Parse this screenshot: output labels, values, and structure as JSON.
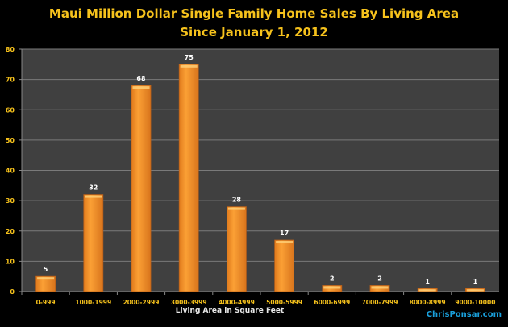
{
  "chart_data": {
    "type": "bar",
    "title": "Maui Million Dollar Single Family Home Sales By Living Area",
    "subtitle": "Since January 1, 2012",
    "xlabel": "Living Area in Square Feet",
    "ylabel": "",
    "categories": [
      "0-999",
      "1000-1999",
      "2000-2999",
      "3000-3999",
      "4000-4999",
      "5000-5999",
      "6000-6999",
      "7000-7999",
      "8000-8999",
      "9000-10000"
    ],
    "values": [
      5,
      32,
      68,
      75,
      28,
      17,
      2,
      2,
      1,
      1
    ],
    "ylim": [
      0,
      80
    ],
    "yticks": [
      0,
      10,
      20,
      30,
      40,
      50,
      60,
      70,
      80
    ],
    "grid": true,
    "data_labels": true,
    "colors": {
      "bar": "#f7952a",
      "background": "#000000",
      "plot_background": "#404040",
      "title": "#f6c21c",
      "tick_labels": "#f6c21c",
      "data_labels": "#ffffff"
    }
  },
  "watermark": "ChrisPonsar.com"
}
